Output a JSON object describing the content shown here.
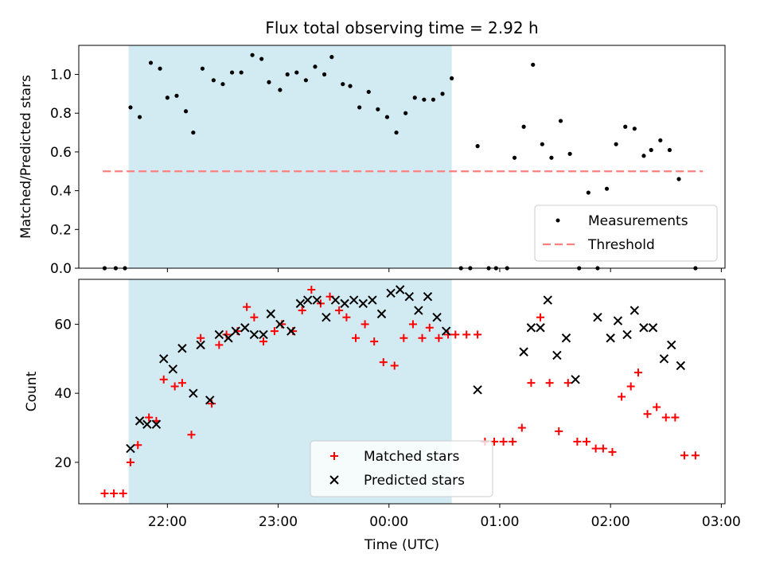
{
  "chart_data": [
    {
      "type": "scatter",
      "title": "Flux total observing time = 2.92 h",
      "xlabel": "",
      "ylabel": "Matched/Predicted stars",
      "ylim": [
        0,
        1.15
      ],
      "yticks": [
        "0.0",
        "0.2",
        "0.4",
        "0.6",
        "0.8",
        "1.0"
      ],
      "xlim": [
        "21:12",
        "03:02"
      ],
      "shaded_interval": [
        "21:39",
        "00:34"
      ],
      "shade_color": "#add8e6",
      "threshold": {
        "name": "Threshold",
        "value": 0.5,
        "x": [
          "21:25",
          "02:50"
        ],
        "color": "#ff7f7f"
      },
      "legend": {
        "position": "lower-right",
        "entries": [
          "Measurements",
          "Threshold"
        ]
      },
      "series": [
        {
          "name": "Measurements",
          "color": "#000000",
          "points": [
            [
              "21:26",
              0
            ],
            [
              "21:32",
              0
            ],
            [
              "21:37",
              0
            ],
            [
              "21:40",
              0.83
            ],
            [
              "21:45",
              0.78
            ],
            [
              "21:51",
              1.06
            ],
            [
              "21:56",
              1.03
            ],
            [
              "22:00",
              0.88
            ],
            [
              "22:05",
              0.89
            ],
            [
              "22:10",
              0.81
            ],
            [
              "22:14",
              0.7
            ],
            [
              "22:19",
              1.03
            ],
            [
              "22:25",
              0.97
            ],
            [
              "22:30",
              0.95
            ],
            [
              "22:35",
              1.01
            ],
            [
              "22:40",
              1.01
            ],
            [
              "22:46",
              1.1
            ],
            [
              "22:51",
              1.08
            ],
            [
              "22:55",
              0.96
            ],
            [
              "23:01",
              0.92
            ],
            [
              "23:05",
              1.0
            ],
            [
              "23:10",
              1.01
            ],
            [
              "23:15",
              0.97
            ],
            [
              "23:20",
              1.04
            ],
            [
              "23:25",
              1.0
            ],
            [
              "23:29",
              1.09
            ],
            [
              "23:35",
              0.95
            ],
            [
              "23:39",
              0.94
            ],
            [
              "23:44",
              0.83
            ],
            [
              "23:49",
              0.91
            ],
            [
              "23:54",
              0.82
            ],
            [
              "23:59",
              0.78
            ],
            [
              "00:04",
              0.7
            ],
            [
              "00:09",
              0.8
            ],
            [
              "00:14",
              0.88
            ],
            [
              "00:19",
              0.87
            ],
            [
              "00:24",
              0.87
            ],
            [
              "00:29",
              0.9
            ],
            [
              "00:34",
              0.98
            ],
            [
              "00:39",
              0
            ],
            [
              "00:44",
              0
            ],
            [
              "00:48",
              0.63
            ],
            [
              "00:54",
              0
            ],
            [
              "00:58",
              0
            ],
            [
              "01:04",
              0
            ],
            [
              "01:08",
              0.57
            ],
            [
              "01:13",
              0.73
            ],
            [
              "01:18",
              1.05
            ],
            [
              "01:23",
              0.64
            ],
            [
              "01:28",
              0.57
            ],
            [
              "01:33",
              0.76
            ],
            [
              "01:38",
              0.59
            ],
            [
              "01:43",
              0
            ],
            [
              "01:48",
              0.39
            ],
            [
              "01:53",
              0
            ],
            [
              "01:58",
              0.41
            ],
            [
              "02:03",
              0.64
            ],
            [
              "02:08",
              0.73
            ],
            [
              "02:13",
              0.72
            ],
            [
              "02:18",
              0.58
            ],
            [
              "02:22",
              0.61
            ],
            [
              "02:27",
              0.66
            ],
            [
              "02:32",
              0.61
            ],
            [
              "02:37",
              0.46
            ],
            [
              "02:46",
              0
            ]
          ]
        }
      ]
    },
    {
      "type": "scatter",
      "title": "",
      "xlabel": "Time (UTC)",
      "ylabel": "Count",
      "ylim": [
        8,
        73
      ],
      "yticks": [
        "20",
        "40",
        "60"
      ],
      "xlim": [
        "21:12",
        "03:02"
      ],
      "xticks": [
        "22:00",
        "23:00",
        "00:00",
        "01:00",
        "02:00",
        "03:00"
      ],
      "shaded_interval": [
        "21:39",
        "00:34"
      ],
      "shade_color": "#add8e6",
      "legend": {
        "position": "lower-center",
        "entries": [
          "Matched stars",
          "Predicted stars"
        ]
      },
      "series": [
        {
          "name": "Matched stars",
          "color": "#ff0000",
          "marker": "plus",
          "points": [
            [
              "21:26",
              11
            ],
            [
              "21:31",
              11
            ],
            [
              "21:36",
              11
            ],
            [
              "21:40",
              20
            ],
            [
              "21:44",
              25
            ],
            [
              "21:50",
              33
            ],
            [
              "21:54",
              32
            ],
            [
              "21:58",
              44
            ],
            [
              "22:04",
              42
            ],
            [
              "22:08",
              43
            ],
            [
              "22:13",
              28
            ],
            [
              "22:18",
              56
            ],
            [
              "22:24",
              37
            ],
            [
              "22:28",
              54
            ],
            [
              "22:32",
              57
            ],
            [
              "22:38",
              58
            ],
            [
              "22:43",
              65
            ],
            [
              "22:47",
              62
            ],
            [
              "22:52",
              55
            ],
            [
              "22:58",
              58
            ],
            [
              "23:02",
              60
            ],
            [
              "23:08",
              58
            ],
            [
              "23:13",
              64
            ],
            [
              "23:18",
              70
            ],
            [
              "23:23",
              66
            ],
            [
              "23:28",
              68
            ],
            [
              "23:33",
              64
            ],
            [
              "23:37",
              62
            ],
            [
              "23:42",
              56
            ],
            [
              "23:47",
              60
            ],
            [
              "23:52",
              55
            ],
            [
              "23:57",
              49
            ],
            [
              "00:03",
              48
            ],
            [
              "00:08",
              56
            ],
            [
              "00:13",
              60
            ],
            [
              "00:18",
              56
            ],
            [
              "00:22",
              59
            ],
            [
              "00:27",
              56
            ],
            [
              "00:32",
              57
            ],
            [
              "00:36",
              57
            ],
            [
              "00:42",
              57
            ],
            [
              "00:48",
              57
            ],
            [
              "00:52",
              26
            ],
            [
              "00:57",
              26
            ],
            [
              "01:02",
              26
            ],
            [
              "01:07",
              26
            ],
            [
              "01:12",
              30
            ],
            [
              "01:17",
              43
            ],
            [
              "01:22",
              62
            ],
            [
              "01:27",
              43
            ],
            [
              "01:32",
              29
            ],
            [
              "01:37",
              43
            ],
            [
              "01:42",
              26
            ],
            [
              "01:47",
              26
            ],
            [
              "01:52",
              24
            ],
            [
              "01:56",
              24
            ],
            [
              "02:01",
              23
            ],
            [
              "02:06",
              39
            ],
            [
              "02:11",
              42
            ],
            [
              "02:15",
              46
            ],
            [
              "02:20",
              34
            ],
            [
              "02:25",
              36
            ],
            [
              "02:30",
              33
            ],
            [
              "02:35",
              33
            ],
            [
              "02:40",
              22
            ],
            [
              "02:46",
              22
            ]
          ]
        },
        {
          "name": "Predicted stars",
          "color": "#000000",
          "marker": "x",
          "points": [
            [
              "21:40",
              24
            ],
            [
              "21:45",
              32
            ],
            [
              "21:49",
              31
            ],
            [
              "21:54",
              31
            ],
            [
              "21:58",
              50
            ],
            [
              "22:03",
              47
            ],
            [
              "22:08",
              53
            ],
            [
              "22:14",
              40
            ],
            [
              "22:18",
              54
            ],
            [
              "22:23",
              38
            ],
            [
              "22:28",
              57
            ],
            [
              "22:33",
              56
            ],
            [
              "22:37",
              58
            ],
            [
              "22:42",
              59
            ],
            [
              "22:47",
              57
            ],
            [
              "22:52",
              57
            ],
            [
              "22:56",
              63
            ],
            [
              "23:01",
              60
            ],
            [
              "23:07",
              58
            ],
            [
              "23:12",
              66
            ],
            [
              "23:16",
              67
            ],
            [
              "23:21",
              67
            ],
            [
              "23:26",
              62
            ],
            [
              "23:31",
              67
            ],
            [
              "23:36",
              66
            ],
            [
              "23:41",
              67
            ],
            [
              "23:46",
              66
            ],
            [
              "23:51",
              67
            ],
            [
              "23:56",
              63
            ],
            [
              "00:01",
              69
            ],
            [
              "00:06",
              70
            ],
            [
              "00:11",
              68
            ],
            [
              "00:16",
              64
            ],
            [
              "00:21",
              68
            ],
            [
              "00:26",
              62
            ],
            [
              "00:31",
              58
            ],
            [
              "00:48",
              41
            ],
            [
              "01:13",
              52
            ],
            [
              "01:17",
              59
            ],
            [
              "01:22",
              59
            ],
            [
              "01:26",
              67
            ],
            [
              "01:31",
              51
            ],
            [
              "01:36",
              56
            ],
            [
              "01:41",
              44
            ],
            [
              "01:53",
              62
            ],
            [
              "02:00",
              56
            ],
            [
              "02:04",
              61
            ],
            [
              "02:09",
              57
            ],
            [
              "02:13",
              64
            ],
            [
              "02:18",
              59
            ],
            [
              "02:23",
              59
            ],
            [
              "02:29",
              50
            ],
            [
              "02:33",
              54
            ],
            [
              "02:38",
              48
            ]
          ]
        }
      ]
    }
  ]
}
